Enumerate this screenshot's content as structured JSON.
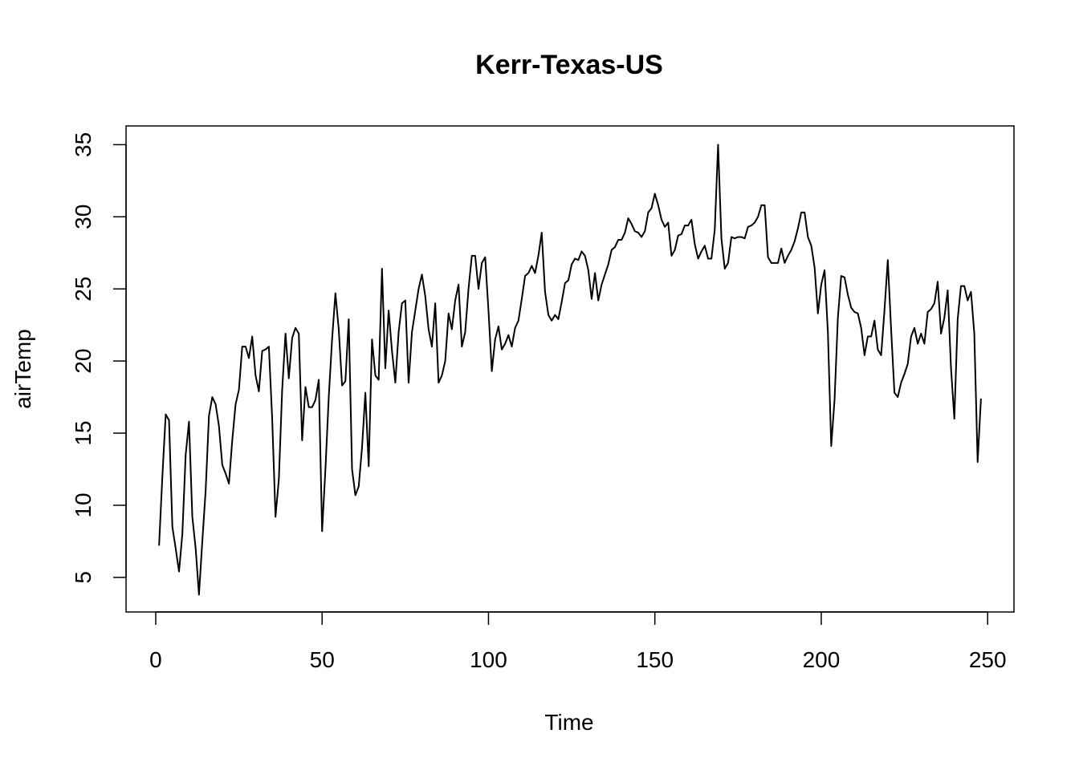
{
  "chart_data": {
    "type": "line",
    "title": "Kerr-Texas-US",
    "xlabel": "Time",
    "ylabel": "airTemp",
    "xlim": [
      -8.92,
      257.92
    ],
    "ylim": [
      2.6,
      36.3
    ],
    "xticks": [
      0,
      50,
      100,
      150,
      200,
      250
    ],
    "yticks": [
      5,
      10,
      15,
      20,
      25,
      30,
      35
    ],
    "grid": false,
    "legend": "none",
    "series": [
      {
        "color": "#000000",
        "x": [
          1,
          2,
          3,
          4,
          5,
          6,
          7,
          8,
          9,
          10,
          11,
          12,
          13,
          14,
          15,
          16,
          17,
          18,
          19,
          20,
          21,
          22,
          23,
          24,
          25,
          26,
          27,
          28,
          29,
          30,
          31,
          32,
          33,
          34,
          35,
          36,
          37,
          38,
          39,
          40,
          41,
          42,
          43,
          44,
          45,
          46,
          47,
          48,
          49,
          50,
          51,
          52,
          53,
          54,
          55,
          56,
          57,
          58,
          59,
          60,
          61,
          62,
          63,
          64,
          65,
          66,
          67,
          68,
          69,
          70,
          71,
          72,
          73,
          74,
          75,
          76,
          77,
          78,
          79,
          80,
          81,
          82,
          83,
          84,
          85,
          86,
          87,
          88,
          89,
          90,
          91,
          92,
          93,
          94,
          95,
          96,
          97,
          98,
          99,
          100,
          101,
          102,
          103,
          104,
          105,
          106,
          107,
          108,
          109,
          110,
          111,
          112,
          113,
          114,
          115,
          116,
          117,
          118,
          119,
          120,
          121,
          122,
          123,
          124,
          125,
          126,
          127,
          128,
          129,
          130,
          131,
          132,
          133,
          134,
          135,
          136,
          137,
          138,
          139,
          140,
          141,
          142,
          143,
          144,
          145,
          146,
          147,
          148,
          149,
          150,
          151,
          152,
          153,
          154,
          155,
          156,
          157,
          158,
          159,
          160,
          161,
          162,
          163,
          164,
          165,
          166,
          167,
          168,
          169,
          170,
          171,
          172,
          173,
          174,
          175,
          176,
          177,
          178,
          179,
          180,
          181,
          182,
          183,
          184,
          185,
          186,
          187,
          188,
          189,
          190,
          191,
          192,
          193,
          194,
          195,
          196,
          197,
          198,
          199,
          200,
          201,
          202,
          203,
          204,
          205,
          206,
          207,
          208,
          209,
          210,
          211,
          212,
          213,
          214,
          215,
          216,
          217,
          218,
          219,
          220,
          221,
          222,
          223,
          224,
          225,
          226,
          227,
          228,
          229,
          230,
          231,
          232,
          233,
          234,
          235,
          236,
          237,
          238,
          239,
          240,
          241,
          242,
          243,
          244,
          245,
          246,
          247,
          248
        ],
        "y": [
          7.2,
          12.0,
          16.3,
          15.9,
          8.5,
          7.0,
          5.4,
          8.0,
          13.5,
          15.8,
          9.2,
          7.0,
          3.8,
          7.5,
          11.0,
          16.2,
          17.5,
          17.0,
          15.5,
          12.8,
          12.2,
          11.5,
          14.5,
          17.0,
          18.0,
          21.0,
          21.0,
          20.2,
          21.7,
          19.0,
          17.9,
          20.7,
          20.8,
          21.0,
          16.0,
          9.2,
          11.8,
          18.0,
          21.9,
          18.8,
          21.6,
          22.3,
          21.9,
          14.5,
          18.2,
          16.8,
          16.8,
          17.3,
          18.7,
          8.2,
          12.5,
          17.5,
          21.5,
          24.7,
          22.2,
          18.3,
          18.6,
          22.9,
          12.5,
          10.7,
          11.3,
          14.0,
          17.8,
          12.7,
          21.5,
          19.0,
          18.7,
          26.4,
          19.5,
          23.5,
          20.7,
          18.5,
          22.0,
          24.0,
          24.2,
          18.5,
          22.0,
          23.5,
          25.0,
          26.0,
          24.5,
          22.2,
          21.0,
          24.0,
          18.5,
          19.0,
          20.0,
          23.3,
          22.2,
          24.2,
          25.3,
          21.0,
          22.0,
          25.0,
          27.3,
          27.3,
          25.0,
          26.8,
          27.2,
          23.5,
          19.3,
          21.5,
          22.4,
          20.8,
          21.2,
          21.8,
          21.0,
          22.3,
          22.8,
          24.3,
          25.9,
          26.1,
          26.6,
          26.1,
          27.3,
          28.9,
          24.8,
          23.2,
          22.8,
          23.2,
          22.9,
          24.1,
          25.4,
          25.6,
          26.7,
          27.1,
          27.0,
          27.6,
          27.3,
          26.3,
          24.3,
          26.1,
          24.2,
          25.3,
          26.0,
          26.7,
          27.7,
          27.9,
          28.4,
          28.4,
          28.9,
          29.9,
          29.5,
          29.0,
          28.9,
          28.6,
          29.0,
          30.3,
          30.6,
          31.6,
          30.8,
          29.8,
          29.3,
          29.6,
          27.3,
          27.7,
          28.7,
          28.8,
          29.4,
          29.4,
          29.8,
          28.1,
          27.1,
          27.6,
          28.0,
          27.1,
          27.1,
          29.1,
          35.0,
          28.5,
          26.4,
          26.8,
          28.6,
          28.5,
          28.6,
          28.6,
          28.5,
          29.3,
          29.4,
          29.6,
          30.0,
          30.8,
          30.8,
          27.2,
          26.8,
          26.8,
          26.8,
          27.8,
          26.8,
          27.3,
          27.7,
          28.3,
          29.2,
          30.3,
          30.3,
          28.6,
          28.0,
          26.5,
          23.3,
          25.3,
          26.3,
          22.0,
          14.1,
          17.3,
          23.0,
          25.9,
          25.8,
          24.6,
          23.7,
          23.4,
          23.3,
          22.3,
          20.4,
          21.7,
          21.7,
          22.8,
          20.8,
          20.4,
          23.5,
          27.0,
          22.2,
          17.8,
          17.5,
          18.5,
          19.1,
          19.8,
          21.7,
          22.3,
          21.2,
          21.9,
          21.2,
          23.4,
          23.6,
          24.0,
          25.5,
          21.9,
          23.0,
          24.9,
          19.5,
          16.0,
          22.9,
          25.2,
          25.2,
          24.2,
          24.8,
          21.9,
          13.0,
          17.4
        ]
      }
    ]
  }
}
